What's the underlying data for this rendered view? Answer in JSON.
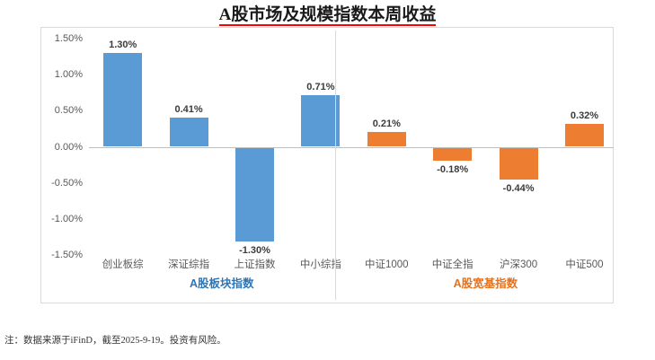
{
  "note": "注：数据来源于iFinD，截至2025-9-19。投资有风险。",
  "colors": {
    "sector_bar": "#5B9BD5",
    "broad_bar": "#ED7D31",
    "sector_label": "#2E75B6",
    "broad_label": "#E8701A",
    "title_underline": "#FF0000",
    "axis_line": "#BFBFBF",
    "frame_border": "#D9D9D9",
    "tick_text": "#595959",
    "value_text": "#3B3B3B"
  },
  "chart_data": {
    "type": "bar",
    "title": "A股市场及规模指数本周收益",
    "ylabel": "",
    "xlabel": "",
    "ylim": [
      -1.5,
      1.5
    ],
    "grid": false,
    "legend_position": "none",
    "y_ticks": [
      "1.50%",
      "1.00%",
      "0.50%",
      "0.00%",
      "-0.50%",
      "-1.00%",
      "-1.50%"
    ],
    "groups": [
      {
        "label": "A股板块指数",
        "bar_color": "#5B9BD5",
        "label_color": "#2E75B6",
        "categories": [
          "创业板综",
          "深证综指",
          "上证指数",
          "中小综指"
        ],
        "values": [
          1.3,
          0.41,
          -1.3,
          0.71
        ],
        "value_labels": [
          "1.30%",
          "0.41%",
          "-1.30%",
          "0.71%"
        ]
      },
      {
        "label": "A股宽基指数",
        "bar_color": "#ED7D31",
        "label_color": "#E8701A",
        "categories": [
          "中证1000",
          "中证全指",
          "沪深300",
          "中证500"
        ],
        "values": [
          0.21,
          -0.18,
          -0.44,
          0.32
        ],
        "value_labels": [
          "0.21%",
          "-0.18%",
          "-0.44%",
          "0.32%"
        ]
      }
    ]
  }
}
